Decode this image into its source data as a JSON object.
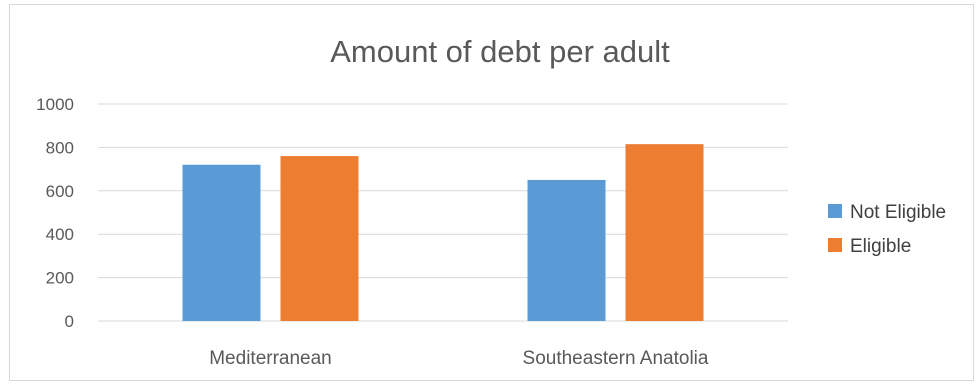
{
  "chart_data": {
    "type": "bar",
    "title": "Amount of debt per adult",
    "xlabel": "",
    "ylabel": "",
    "categories": [
      "Mediterranean",
      "Southeastern Anatolia"
    ],
    "series": [
      {
        "name": "Not Eligible",
        "values": [
          720,
          650
        ],
        "color": "#5b9bd5"
      },
      {
        "name": "Eligible",
        "values": [
          760,
          815
        ],
        "color": "#ed7d31"
      }
    ],
    "ylim": [
      0,
      1000
    ],
    "yticks": [
      0,
      200,
      400,
      600,
      800,
      1000
    ],
    "grid": true,
    "legend_position": "right"
  }
}
